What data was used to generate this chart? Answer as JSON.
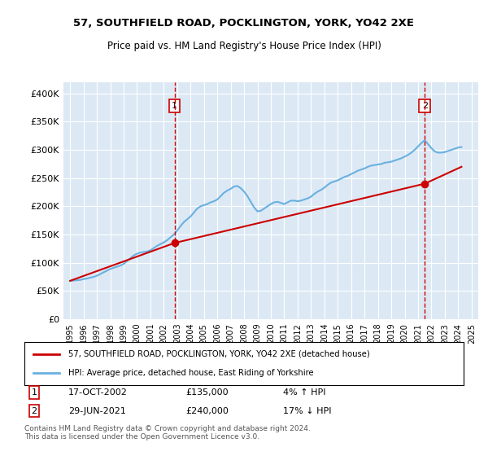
{
  "title": "57, SOUTHFIELD ROAD, POCKLINGTON, YORK, YO42 2XE",
  "subtitle": "Price paid vs. HM Land Registry's House Price Index (HPI)",
  "bg_color": "#dce9f5",
  "plot_bg_color": "#dce9f5",
  "fig_bg_color": "#ffffff",
  "hpi_color": "#6ab0e0",
  "price_color": "#cc0000",
  "dashed_color": "#cc0000",
  "ylim": [
    0,
    420000
  ],
  "yticks": [
    0,
    50000,
    100000,
    150000,
    200000,
    250000,
    300000,
    350000,
    400000
  ],
  "ytick_labels": [
    "£0",
    "£50K",
    "£100K",
    "£150K",
    "£200K",
    "£250K",
    "£300K",
    "£350K",
    "£400K"
  ],
  "sale1_date": "17-OCT-2002",
  "sale1_price": 135000,
  "sale1_pct": "4%",
  "sale1_dir": "↑",
  "sale1_year": 2002.8,
  "sale2_date": "29-JUN-2021",
  "sale2_price": 240000,
  "sale2_pct": "17%",
  "sale2_dir": "↓",
  "sale2_year": 2021.5,
  "legend_line1": "57, SOUTHFIELD ROAD, POCKLINGTON, YORK, YO42 2XE (detached house)",
  "legend_line2": "HPI: Average price, detached house, East Riding of Yorkshire",
  "footnote": "Contains HM Land Registry data © Crown copyright and database right 2024.\nThis data is licensed under the Open Government Licence v3.0.",
  "hpi_years": [
    1995.0,
    1995.25,
    1995.5,
    1995.75,
    1996.0,
    1996.25,
    1996.5,
    1996.75,
    1997.0,
    1997.25,
    1997.5,
    1997.75,
    1998.0,
    1998.25,
    1998.5,
    1998.75,
    1999.0,
    1999.25,
    1999.5,
    1999.75,
    2000.0,
    2000.25,
    2000.5,
    2000.75,
    2001.0,
    2001.25,
    2001.5,
    2001.75,
    2002.0,
    2002.25,
    2002.5,
    2002.75,
    2003.0,
    2003.25,
    2003.5,
    2003.75,
    2004.0,
    2004.25,
    2004.5,
    2004.75,
    2005.0,
    2005.25,
    2005.5,
    2005.75,
    2006.0,
    2006.25,
    2006.5,
    2006.75,
    2007.0,
    2007.25,
    2007.5,
    2007.75,
    2008.0,
    2008.25,
    2008.5,
    2008.75,
    2009.0,
    2009.25,
    2009.5,
    2009.75,
    2010.0,
    2010.25,
    2010.5,
    2010.75,
    2011.0,
    2011.25,
    2011.5,
    2011.75,
    2012.0,
    2012.25,
    2012.5,
    2012.75,
    2013.0,
    2013.25,
    2013.5,
    2013.75,
    2014.0,
    2014.25,
    2014.5,
    2014.75,
    2015.0,
    2015.25,
    2015.5,
    2015.75,
    2016.0,
    2016.25,
    2016.5,
    2016.75,
    2017.0,
    2017.25,
    2017.5,
    2017.75,
    2018.0,
    2018.25,
    2018.5,
    2018.75,
    2019.0,
    2019.25,
    2019.5,
    2019.75,
    2020.0,
    2020.25,
    2020.5,
    2020.75,
    2021.0,
    2021.25,
    2021.5,
    2021.75,
    2022.0,
    2022.25,
    2022.5,
    2022.75,
    2023.0,
    2023.25,
    2023.5,
    2023.75,
    2024.0,
    2024.25
  ],
  "hpi_values": [
    68000,
    68500,
    69000,
    69500,
    71000,
    72000,
    73500,
    75000,
    77000,
    80000,
    83000,
    86000,
    89000,
    91000,
    93000,
    95000,
    98000,
    103000,
    108000,
    113000,
    116000,
    118000,
    119000,
    120000,
    122000,
    126000,
    130000,
    133000,
    136000,
    140000,
    145000,
    150000,
    157000,
    165000,
    172000,
    177000,
    182000,
    189000,
    196000,
    200000,
    202000,
    204000,
    207000,
    209000,
    212000,
    218000,
    224000,
    228000,
    231000,
    235000,
    236000,
    232000,
    226000,
    218000,
    208000,
    198000,
    191000,
    192000,
    196000,
    200000,
    204000,
    207000,
    208000,
    206000,
    204000,
    207000,
    210000,
    210000,
    209000,
    210000,
    212000,
    214000,
    217000,
    222000,
    226000,
    229000,
    233000,
    238000,
    242000,
    244000,
    246000,
    249000,
    252000,
    254000,
    257000,
    260000,
    263000,
    265000,
    267000,
    270000,
    272000,
    273000,
    274000,
    275000,
    277000,
    278000,
    279000,
    281000,
    283000,
    285000,
    288000,
    291000,
    295000,
    300000,
    306000,
    312000,
    317000,
    310000,
    303000,
    297000,
    295000,
    295000,
    296000,
    298000,
    300000,
    302000,
    304000,
    305000
  ],
  "price_years": [
    1995.0,
    2002.8,
    2021.5,
    2024.25
  ],
  "price_values": [
    68000,
    135000,
    240000,
    270000
  ],
  "xlim": [
    1994.5,
    2025.5
  ],
  "xtick_years": [
    1995,
    1996,
    1997,
    1998,
    1999,
    2000,
    2001,
    2002,
    2003,
    2004,
    2005,
    2006,
    2007,
    2008,
    2009,
    2010,
    2011,
    2012,
    2013,
    2014,
    2015,
    2016,
    2017,
    2018,
    2019,
    2020,
    2021,
    2022,
    2023,
    2024,
    2025
  ]
}
